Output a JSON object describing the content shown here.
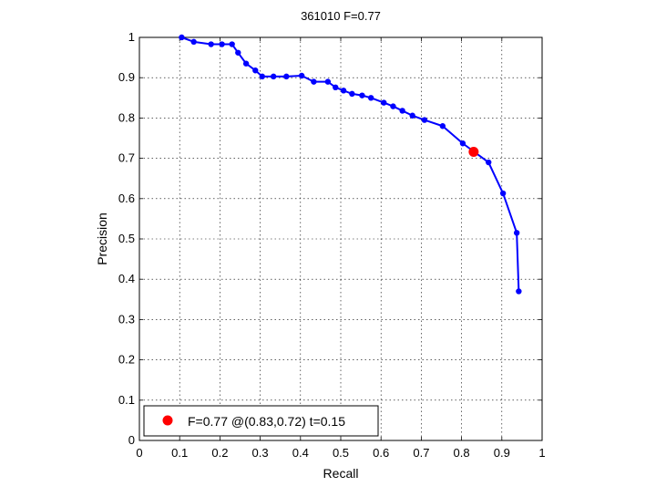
{
  "chart_data": {
    "type": "line",
    "title": "361010 F=0.77",
    "xlabel": "Recall",
    "ylabel": "Precision",
    "xlim": [
      0,
      1
    ],
    "ylim": [
      0,
      1
    ],
    "xticks": [
      "0",
      "0.1",
      "0.2",
      "0.3",
      "0.4",
      "0.5",
      "0.6",
      "0.7",
      "0.8",
      "0.9",
      "1"
    ],
    "yticks": [
      "0",
      "0.1",
      "0.2",
      "0.3",
      "0.4",
      "0.5",
      "0.6",
      "0.7",
      "0.8",
      "0.9",
      "1"
    ],
    "grid": true,
    "legend_position": "bottom-left",
    "series": [
      {
        "color": "#0000ff",
        "marker": "dot",
        "x": [
          0.105,
          0.135,
          0.178,
          0.205,
          0.23,
          0.245,
          0.265,
          0.288,
          0.305,
          0.333,
          0.365,
          0.403,
          0.433,
          0.468,
          0.487,
          0.507,
          0.528,
          0.553,
          0.575,
          0.607,
          0.63,
          0.653,
          0.678,
          0.708,
          0.753,
          0.803,
          0.867,
          0.903,
          0.937,
          0.942
        ],
        "y": [
          1.0,
          0.989,
          0.983,
          0.983,
          0.983,
          0.962,
          0.935,
          0.918,
          0.903,
          0.903,
          0.903,
          0.905,
          0.89,
          0.89,
          0.876,
          0.868,
          0.86,
          0.856,
          0.85,
          0.838,
          0.829,
          0.818,
          0.806,
          0.795,
          0.78,
          0.737,
          0.69,
          0.613,
          0.515,
          0.37
        ]
      }
    ],
    "highlight": {
      "color": "#ff0000",
      "x": 0.83,
      "y": 0.716,
      "legend_label": "F=0.77 @(0.83,0.72) t=0.15"
    }
  }
}
